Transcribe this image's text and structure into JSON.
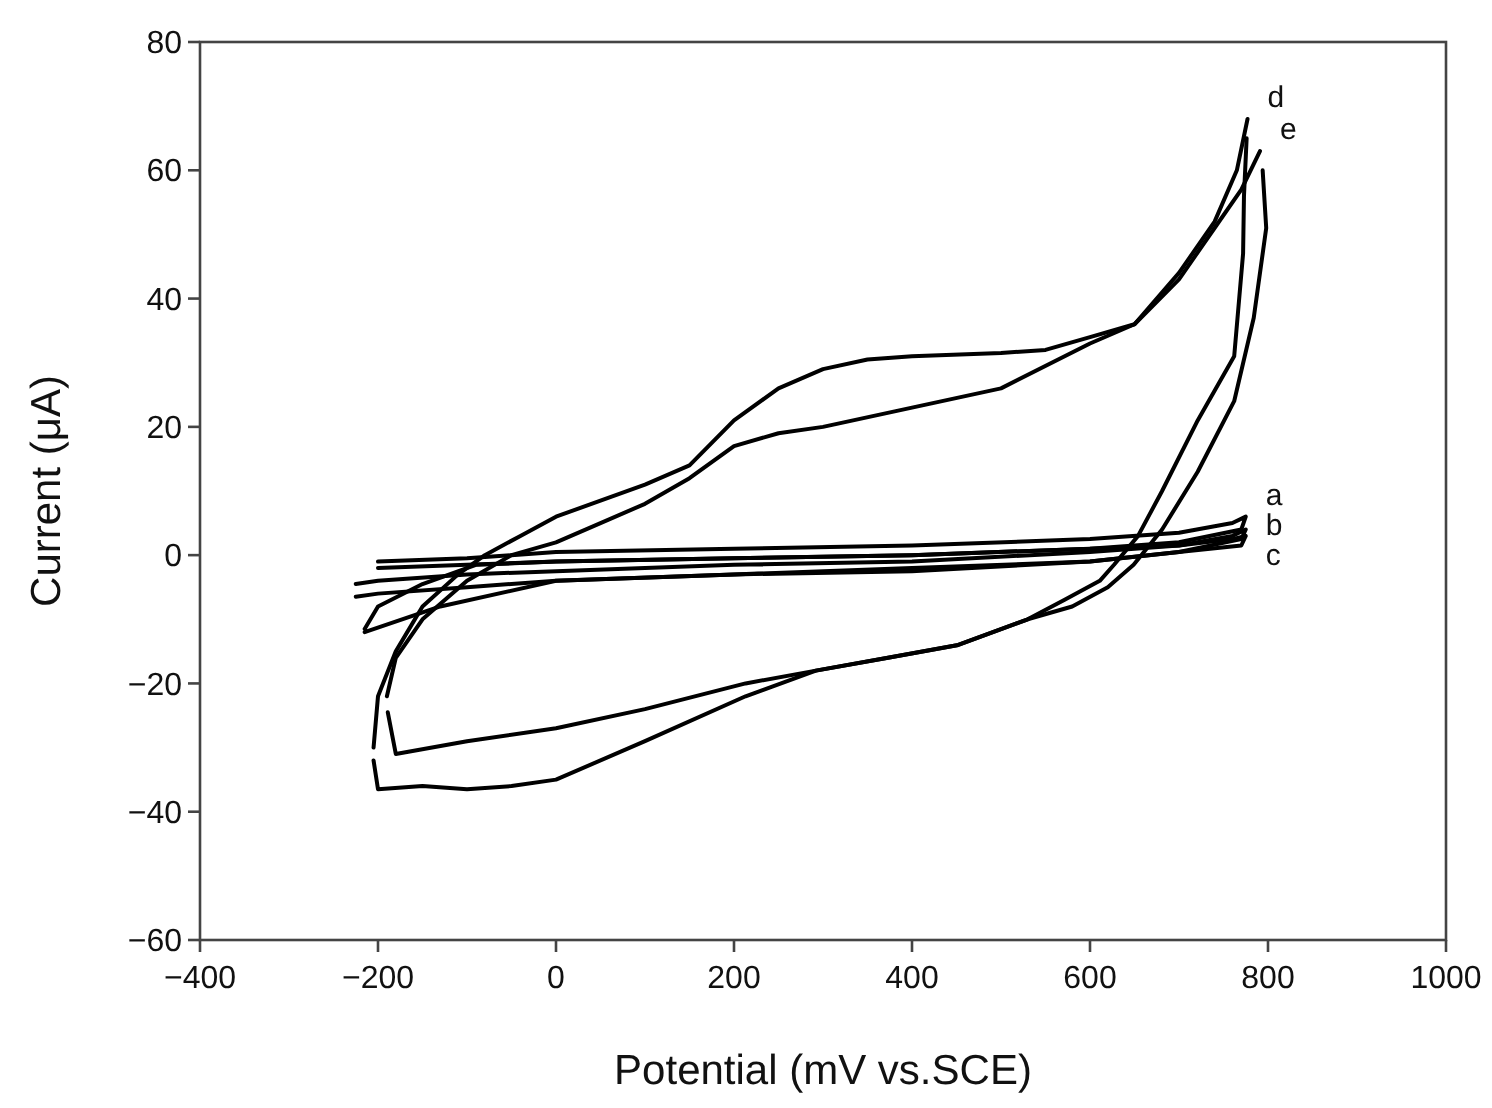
{
  "chart_data": {
    "type": "line",
    "xlabel": "Potential (mV vs.SCE)",
    "ylabel": "Current (μA)",
    "xlim": [
      -400,
      1000
    ],
    "ylim": [
      -60,
      80
    ],
    "xticks": [
      -400,
      -200,
      0,
      200,
      400,
      600,
      800,
      1000
    ],
    "yticks": [
      -60,
      -40,
      -20,
      0,
      20,
      40,
      60,
      80
    ],
    "grid": false,
    "marker": "none",
    "line_style": "solid",
    "series": [
      {
        "name": "a",
        "color": "#000000",
        "x": [
          -200,
          -100,
          0,
          200,
          400,
          600,
          700,
          760,
          775,
          770,
          700,
          600,
          400,
          200,
          0,
          -100,
          -200
        ],
        "values": [
          -1,
          -0.5,
          0.5,
          1,
          1.5,
          2.5,
          3.5,
          5,
          6,
          4,
          2,
          1,
          0,
          -0.5,
          -1,
          -1.5,
          -2
        ]
      },
      {
        "name": "b",
        "color": "#000000",
        "x": [
          -225,
          -200,
          -100,
          0,
          200,
          400,
          600,
          700,
          760,
          775,
          770,
          700,
          600,
          400,
          200,
          0,
          -100,
          -200,
          -225
        ],
        "values": [
          -4.5,
          -4,
          -3,
          -2.5,
          -1.5,
          -1,
          0.5,
          1.5,
          3,
          4,
          2.5,
          0.5,
          -1,
          -2,
          -3,
          -4,
          -5,
          -6,
          -6.5
        ]
      },
      {
        "name": "c",
        "color": "#000000",
        "x": [
          -215,
          -200,
          -150,
          -90,
          0,
          200,
          400,
          600,
          700,
          760,
          775,
          770,
          700,
          600,
          400,
          200,
          0,
          -130,
          -215
        ],
        "values": [
          -11.5,
          -8,
          -4.5,
          -1.5,
          -1,
          -0.5,
          0,
          1,
          1.5,
          2.5,
          3,
          1.5,
          0.5,
          -1,
          -2.5,
          -3,
          -4,
          -8,
          -12
        ]
      },
      {
        "name": "d",
        "color": "#000000",
        "x": [
          -205,
          -200,
          -180,
          -150,
          -110,
          -80,
          -40,
          0,
          50,
          100,
          150,
          200,
          250,
          300,
          350,
          400,
          500,
          550,
          600,
          650,
          700,
          740,
          765,
          777
        ],
        "values": [
          -30,
          -22,
          -15,
          -8,
          -3,
          0,
          3,
          6,
          8.5,
          11,
          14,
          21,
          26,
          29,
          30.5,
          31,
          31.5,
          32,
          34,
          36,
          44,
          52,
          60,
          68
        ]
      },
      {
        "color": "#000000",
        "x": [
          776,
          773,
          772,
          762,
          721,
          681,
          654,
          627,
          611,
          571,
          530,
          452,
          373,
          292,
          213,
          100,
          0,
          -50,
          -100,
          -150,
          -200,
          -205
        ],
        "values": [
          65,
          56,
          47,
          31,
          21,
          10,
          3,
          -1.5,
          -4,
          -7,
          -10,
          -14,
          -16,
          -18,
          -22,
          -29,
          -35,
          -36,
          -36.5,
          -36,
          -36.5,
          -32
        ]
      },
      {
        "name": "e",
        "color": "#000000",
        "x": [
          -190,
          -180,
          -150,
          -100,
          -50,
          0,
          50,
          100,
          150,
          200,
          250,
          300,
          400,
          500,
          600,
          650,
          700,
          740,
          770,
          791
        ],
        "values": [
          -22,
          -16,
          -10,
          -4,
          0,
          2,
          5,
          8,
          12,
          17,
          19,
          20,
          23,
          26,
          33,
          36,
          43,
          51,
          57,
          63
        ]
      },
      {
        "color": "#000000",
        "x": [
          794,
          798,
          784,
          762,
          721,
          681,
          649,
          620,
          580,
          530,
          452,
          373,
          292,
          213,
          100,
          0,
          -100,
          -180,
          -189
        ],
        "values": [
          60,
          51,
          37,
          24,
          13,
          4,
          -1.5,
          -5,
          -8,
          -10,
          -14,
          -16,
          -18,
          -20,
          -24,
          -27,
          -29,
          -31,
          -24.5
        ]
      }
    ]
  }
}
